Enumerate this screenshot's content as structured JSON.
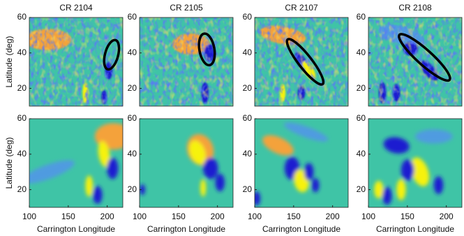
{
  "chart_data": [
    {
      "type": "heatmap",
      "title": "CR 2104",
      "ylabel": "Latitude (deg)",
      "ylim": [
        10,
        60
      ],
      "yticks": [
        20,
        40,
        60
      ]
    },
    {
      "type": "heatmap",
      "title": "CR 2105",
      "ylim": [
        10,
        60
      ],
      "yticks": [
        20,
        40,
        60
      ]
    },
    {
      "type": "heatmap",
      "title": "CR 2107",
      "ylim": [
        10,
        60
      ],
      "yticks": [
        20,
        40,
        60
      ]
    },
    {
      "type": "heatmap",
      "title": "CR 2108",
      "ylim": [
        10,
        60
      ],
      "yticks": [
        20,
        40,
        60
      ]
    },
    {
      "type": "heatmap",
      "ylabel": "Latitude (deg)",
      "xlabel": "Carrington Longitude",
      "xlim": [
        100,
        220
      ],
      "xticks": [
        100,
        150,
        200
      ],
      "ylim": [
        10,
        60
      ],
      "yticks": [
        20,
        40,
        60
      ]
    },
    {
      "type": "heatmap",
      "xlabel": "Carrington Longitude",
      "xlim": [
        100,
        220
      ],
      "xticks": [
        100,
        150,
        200
      ],
      "ylim": [
        10,
        60
      ],
      "yticks": [
        20,
        40,
        60
      ]
    },
    {
      "type": "heatmap",
      "xlabel": "Carrington Longitude",
      "xlim": [
        100,
        220
      ],
      "xticks": [
        100,
        150,
        200
      ],
      "ylim": [
        10,
        60
      ],
      "yticks": [
        20,
        40,
        60
      ]
    },
    {
      "type": "heatmap",
      "xlabel": "Carrington Longitude",
      "xlim": [
        100,
        220
      ],
      "xticks": [
        100,
        150,
        200
      ],
      "ylim": [
        10,
        60
      ],
      "yticks": [
        20,
        40,
        60
      ]
    }
  ]
}
